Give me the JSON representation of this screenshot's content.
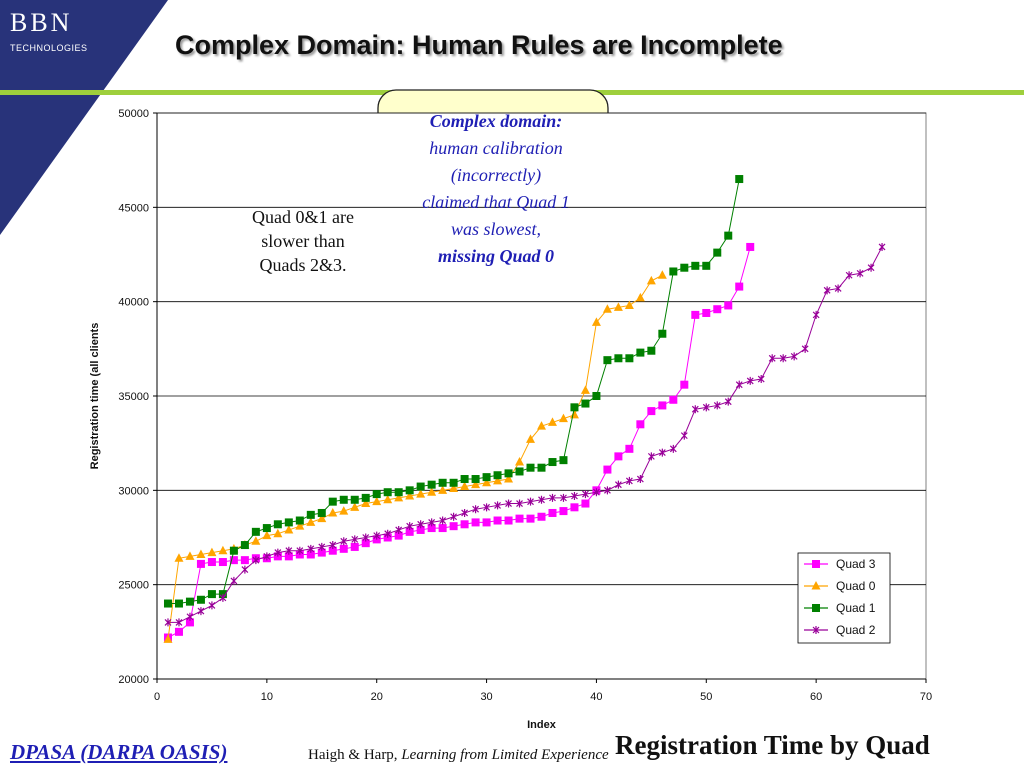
{
  "logo": {
    "name": "BBN",
    "sub": "TECHNOLOGIES"
  },
  "title": "Complex Domain: Human Rules are Incomplete",
  "footer": {
    "left": "DPASA (DARPA OASIS)",
    "cite_authors": "Haigh & Harp, ",
    "cite_title": "Learning from Limited Experience",
    "right": "Registration Time by Quad"
  },
  "callouts": {
    "a": {
      "lines": [
        "Quad 0&1 are",
        "slower than",
        "Quads 2&3."
      ]
    },
    "b": {
      "line1": "Complex domain:",
      "line2": "human calibration",
      "line3": "(incorrectly)",
      "line4": "claimed that Quad 1",
      "line5": "was slowest,",
      "line6": "missing Quad 0"
    }
  },
  "colors": {
    "bg": "#ffffff",
    "band": "#28337a",
    "accent_line": "#9ecf3c",
    "callout_fill": "#ffffcc",
    "callout_text_blue": "#1f1fb4"
  },
  "chart_data": {
    "type": "line",
    "xlabel": "Index",
    "ylabel": "Registration time (all clients",
    "xlim": [
      0,
      70
    ],
    "ylim": [
      20000,
      50000
    ],
    "xticks": [
      0,
      10,
      20,
      30,
      40,
      50,
      60,
      70
    ],
    "yticks": [
      20000,
      25000,
      30000,
      35000,
      40000,
      45000,
      50000
    ],
    "grid": "horizontal",
    "legend_position": "bottom-right",
    "series": [
      {
        "name": "Quad 3",
        "color": "#ff00ff",
        "marker": "square",
        "values": [
          22200,
          22500,
          23000,
          26100,
          26200,
          26200,
          26300,
          26300,
          26400,
          26400,
          26500,
          26500,
          26600,
          26600,
          26700,
          26800,
          26900,
          27000,
          27200,
          27400,
          27500,
          27600,
          27800,
          27900,
          28000,
          28000,
          28100,
          28200,
          28300,
          28300,
          28400,
          28400,
          28500,
          28500,
          28600,
          28800,
          28900,
          29100,
          29300,
          30000,
          31100,
          31800,
          32200,
          33500,
          34200,
          34500,
          34800,
          35600,
          39300,
          39400,
          39600,
          39800,
          40800,
          42900
        ]
      },
      {
        "name": "Quad 0",
        "color": "#ffa500",
        "marker": "triangle",
        "values": [
          22100,
          26400,
          26500,
          26600,
          26700,
          26800,
          26900,
          27100,
          27300,
          27600,
          27700,
          27900,
          28100,
          28300,
          28500,
          28800,
          28900,
          29100,
          29300,
          29400,
          29500,
          29600,
          29700,
          29800,
          29900,
          30000,
          30100,
          30200,
          30300,
          30400,
          30500,
          30600,
          31500,
          32700,
          33400,
          33600,
          33800,
          34000,
          35300,
          38900,
          39600,
          39700,
          39800,
          40200,
          41100,
          41400
        ]
      },
      {
        "name": "Quad 1",
        "color": "#008000",
        "marker": "square",
        "values": [
          24000,
          24000,
          24100,
          24200,
          24500,
          24500,
          26800,
          27100,
          27800,
          28000,
          28200,
          28300,
          28400,
          28700,
          28800,
          29400,
          29500,
          29500,
          29600,
          29800,
          29900,
          29900,
          30000,
          30200,
          30300,
          30400,
          30400,
          30600,
          30600,
          30700,
          30800,
          30900,
          31000,
          31200,
          31200,
          31500,
          31600,
          34400,
          34600,
          35000,
          36900,
          37000,
          37000,
          37300,
          37400,
          38300,
          41600,
          41800,
          41900,
          41900,
          42600,
          43500,
          46500
        ]
      },
      {
        "name": "Quad 2",
        "color": "#990099",
        "marker": "x",
        "values": [
          23000,
          23000,
          23300,
          23600,
          23900,
          24300,
          25200,
          25800,
          26300,
          26500,
          26700,
          26800,
          26800,
          26900,
          27000,
          27100,
          27300,
          27400,
          27500,
          27600,
          27700,
          27900,
          28100,
          28200,
          28300,
          28400,
          28600,
          28800,
          29000,
          29100,
          29200,
          29300,
          29300,
          29400,
          29500,
          29600,
          29600,
          29700,
          29800,
          29900,
          30000,
          30300,
          30500,
          30600,
          31800,
          32000,
          32200,
          32900,
          34300,
          34400,
          34500,
          34700,
          35600,
          35800,
          35900,
          37000,
          37000,
          37100,
          37500,
          39300,
          40600,
          40700,
          41400,
          41500,
          41800,
          42900
        ]
      }
    ]
  }
}
